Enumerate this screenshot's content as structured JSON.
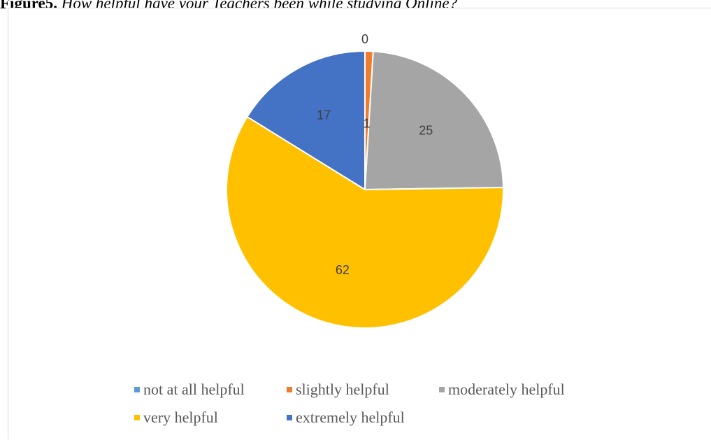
{
  "caption": {
    "label": "Figure5.",
    "text": " How helpful have your Teachers been while studying Online?"
  },
  "chart_data": {
    "type": "pie",
    "categories": [
      "not at all helpful",
      "slightly helpful",
      "moderately helpful",
      "very helpful",
      "extremely helpful"
    ],
    "values": [
      0,
      1,
      25,
      62,
      17
    ],
    "data_labels": [
      "0",
      "1",
      "25",
      "62",
      "17"
    ],
    "colors": [
      "#5B9BD5",
      "#ED7D31",
      "#A5A5A5",
      "#FFC000",
      "#4472C4"
    ],
    "start_angle": "12 o'clock",
    "direction": "clockwise",
    "legend_position": "bottom"
  }
}
